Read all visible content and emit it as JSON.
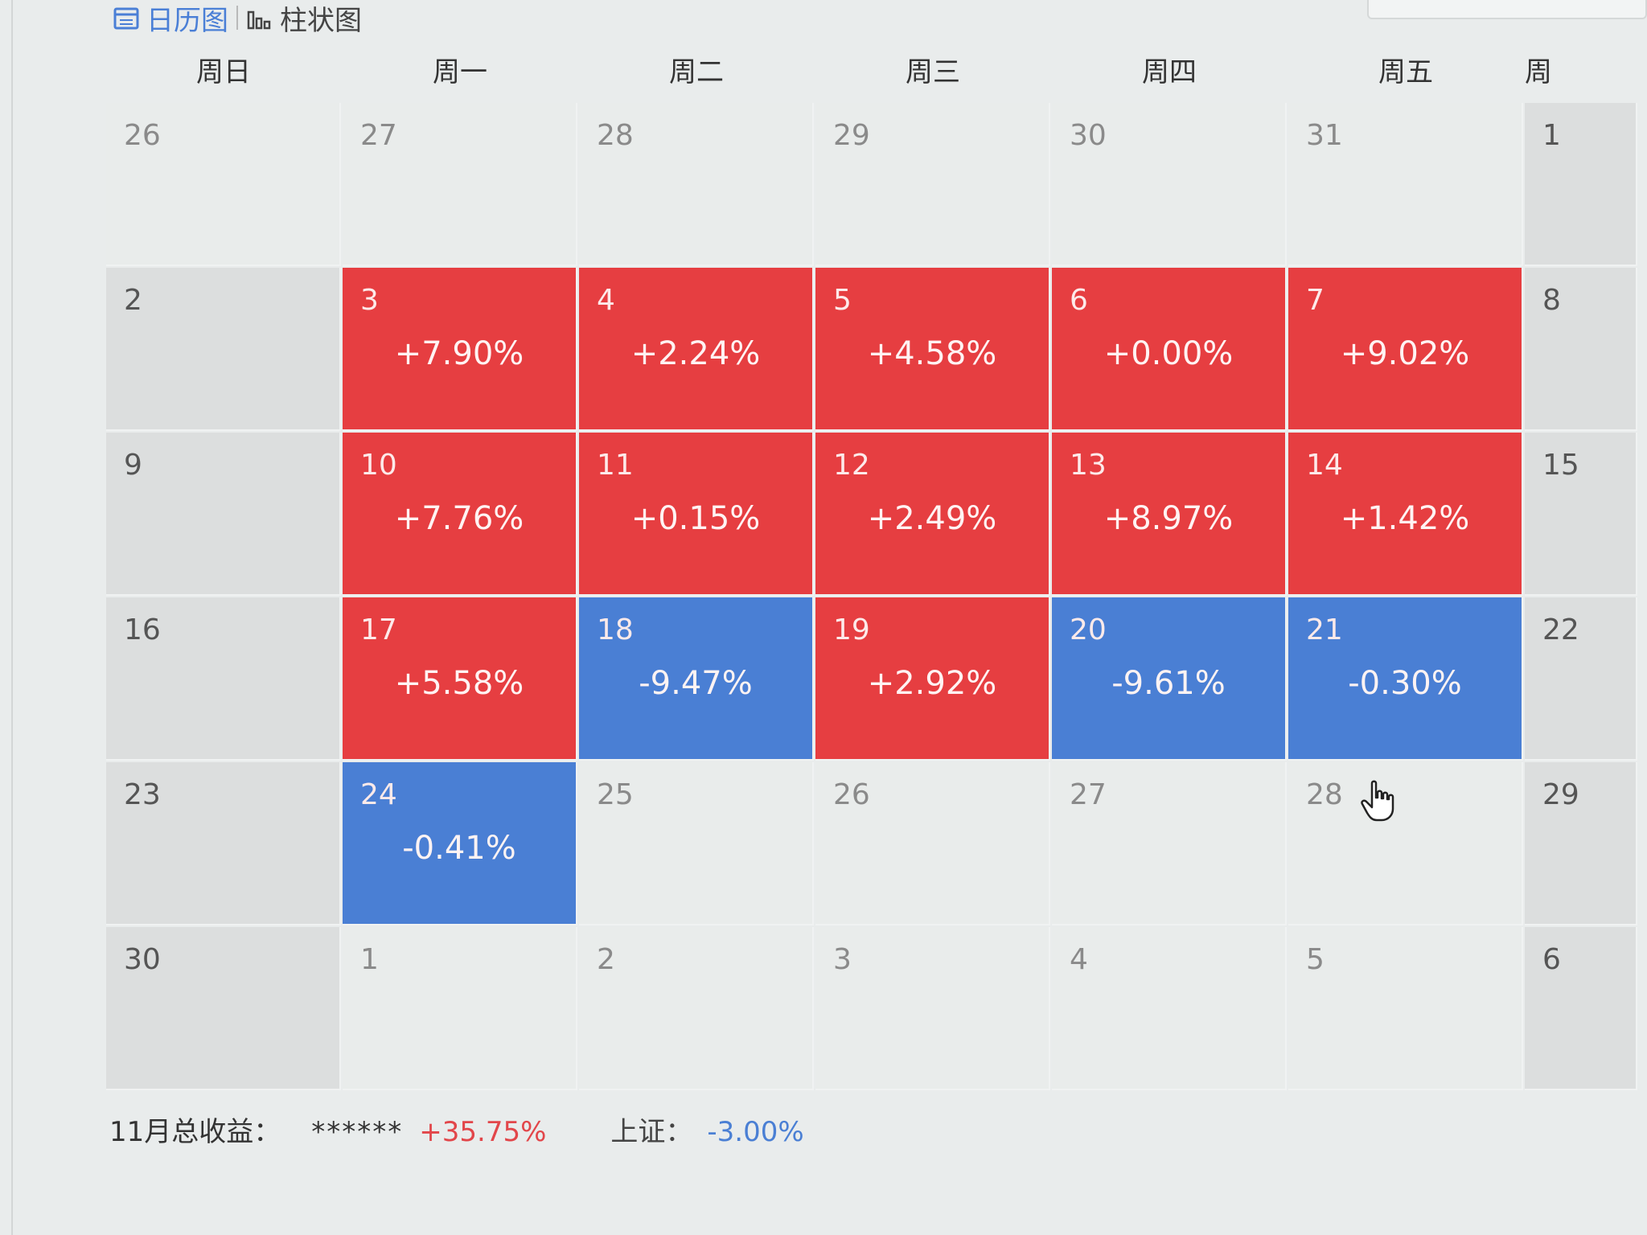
{
  "toolbar": {
    "tabs": [
      {
        "label": "日历图",
        "icon": "calendar-icon",
        "active": true
      },
      {
        "label": "柱状图",
        "icon": "bar-chart-icon",
        "active": false
      }
    ]
  },
  "weekdays": [
    "周日",
    "周一",
    "周二",
    "周三",
    "周四",
    "周五",
    "周"
  ],
  "calendar": {
    "weeks": [
      [
        {
          "day": "26",
          "pct": "",
          "state": "light"
        },
        {
          "day": "27",
          "pct": "",
          "state": "light"
        },
        {
          "day": "28",
          "pct": "",
          "state": "light"
        },
        {
          "day": "29",
          "pct": "",
          "state": "light"
        },
        {
          "day": "30",
          "pct": "",
          "state": "light"
        },
        {
          "day": "31",
          "pct": "",
          "state": "light"
        },
        {
          "day": "1",
          "pct": "",
          "state": "gray"
        }
      ],
      [
        {
          "day": "2",
          "pct": "",
          "state": "gray"
        },
        {
          "day": "3",
          "pct": "+7.90%",
          "state": "up"
        },
        {
          "day": "4",
          "pct": "+2.24%",
          "state": "up"
        },
        {
          "day": "5",
          "pct": "+4.58%",
          "state": "up"
        },
        {
          "day": "6",
          "pct": "+0.00%",
          "state": "up"
        },
        {
          "day": "7",
          "pct": "+9.02%",
          "state": "up"
        },
        {
          "day": "8",
          "pct": "",
          "state": "gray"
        }
      ],
      [
        {
          "day": "9",
          "pct": "",
          "state": "gray"
        },
        {
          "day": "10",
          "pct": "+7.76%",
          "state": "up"
        },
        {
          "day": "11",
          "pct": "+0.15%",
          "state": "up"
        },
        {
          "day": "12",
          "pct": "+2.49%",
          "state": "up"
        },
        {
          "day": "13",
          "pct": "+8.97%",
          "state": "up"
        },
        {
          "day": "14",
          "pct": "+1.42%",
          "state": "up"
        },
        {
          "day": "15",
          "pct": "",
          "state": "gray"
        }
      ],
      [
        {
          "day": "16",
          "pct": "",
          "state": "gray"
        },
        {
          "day": "17",
          "pct": "+5.58%",
          "state": "up"
        },
        {
          "day": "18",
          "pct": "-9.47%",
          "state": "down"
        },
        {
          "day": "19",
          "pct": "+2.92%",
          "state": "up"
        },
        {
          "day": "20",
          "pct": "-9.61%",
          "state": "down"
        },
        {
          "day": "21",
          "pct": "-0.30%",
          "state": "down"
        },
        {
          "day": "22",
          "pct": "",
          "state": "gray"
        }
      ],
      [
        {
          "day": "23",
          "pct": "",
          "state": "gray"
        },
        {
          "day": "24",
          "pct": "-0.41%",
          "state": "down"
        },
        {
          "day": "25",
          "pct": "",
          "state": "light"
        },
        {
          "day": "26",
          "pct": "",
          "state": "light"
        },
        {
          "day": "27",
          "pct": "",
          "state": "light"
        },
        {
          "day": "28",
          "pct": "",
          "state": "light"
        },
        {
          "day": "29",
          "pct": "",
          "state": "gray"
        }
      ],
      [
        {
          "day": "30",
          "pct": "",
          "state": "gray"
        },
        {
          "day": "1",
          "pct": "",
          "state": "light"
        },
        {
          "day": "2",
          "pct": "",
          "state": "light"
        },
        {
          "day": "3",
          "pct": "",
          "state": "light"
        },
        {
          "day": "4",
          "pct": "",
          "state": "light"
        },
        {
          "day": "5",
          "pct": "",
          "state": "light"
        },
        {
          "day": "6",
          "pct": "",
          "state": "gray"
        }
      ]
    ]
  },
  "summary": {
    "label": "11月总收益：",
    "masked_value": "******",
    "total_pct": "+35.75%",
    "index_label": "上证：",
    "index_pct": "-3.00%"
  },
  "colors": {
    "up": "#e63e41",
    "down": "#4a7fd4",
    "accent": "#4a7fd6"
  },
  "cursor": {
    "icon": "hand-pointer-icon"
  }
}
